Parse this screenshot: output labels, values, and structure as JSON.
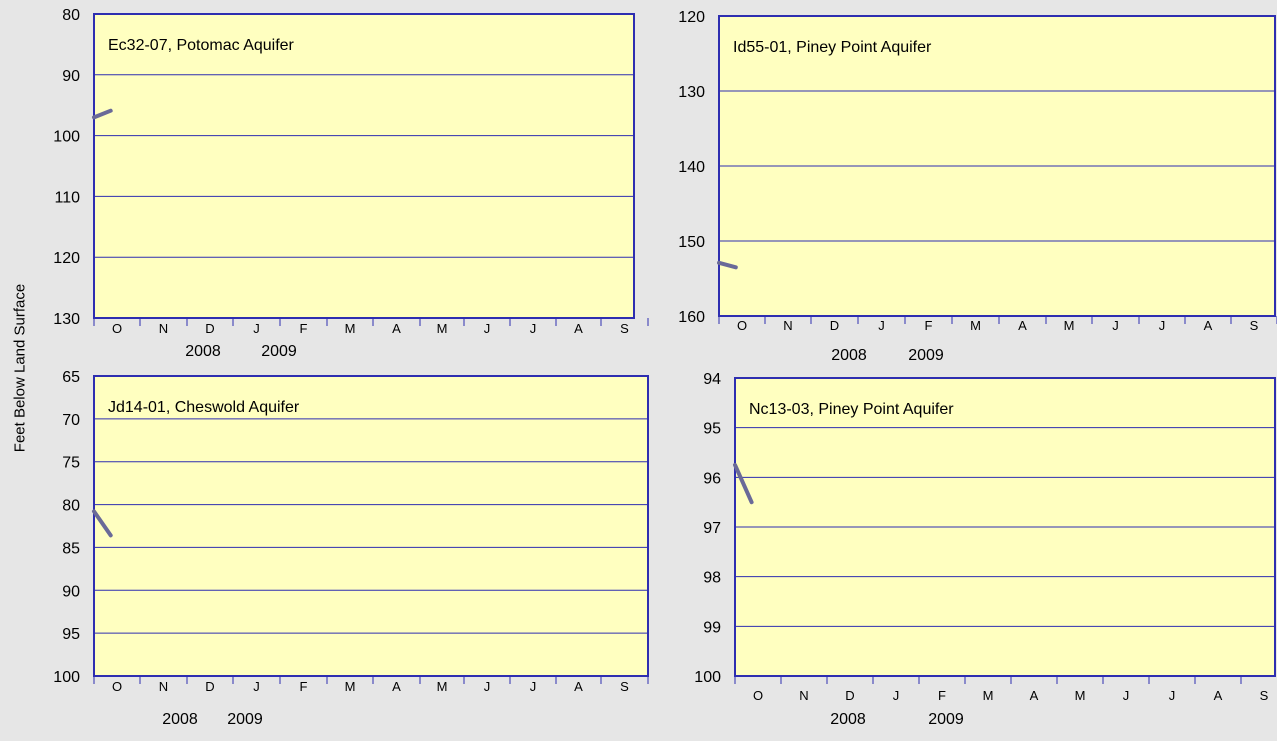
{
  "ylabel": "Feet Below Land Surface",
  "colors": {
    "plot_bg": "#ffffc0",
    "frame": "#2e2eb0",
    "grid": "#2e2eb0",
    "line": "#6a6a98"
  },
  "chart_data": [
    {
      "type": "line",
      "title": "Ec32-07, Potomac Aquifer",
      "ylim": [
        80,
        130
      ],
      "y_inverted": true,
      "yticks": [
        "80",
        "90",
        "100",
        "110",
        "120",
        "130"
      ],
      "months": [
        "O",
        "N",
        "D",
        "J",
        "F",
        "M",
        "A",
        "M",
        "J",
        "J",
        "A",
        "S"
      ],
      "years": [
        "2008",
        "2009"
      ],
      "series": [
        {
          "x": [
            "2008-10-01",
            "2008-10-12"
          ],
          "y": [
            97,
            95.9
          ]
        }
      ]
    },
    {
      "type": "line",
      "title": "Id55-01, Piney Point Aquifer",
      "ylim": [
        120,
        160
      ],
      "y_inverted": true,
      "yticks": [
        "120",
        "130",
        "140",
        "150",
        "160"
      ],
      "months": [
        "O",
        "N",
        "D",
        "J",
        "F",
        "M",
        "A",
        "M",
        "J",
        "J",
        "A",
        "S"
      ],
      "years": [
        "2008",
        "2009"
      ],
      "series": [
        {
          "x": [
            "2008-10-01",
            "2008-10-12"
          ],
          "y": [
            152.9,
            153.5
          ]
        }
      ]
    },
    {
      "type": "line",
      "title": "Jd14-01, Cheswold Aquifer",
      "ylim": [
        65,
        100
      ],
      "y_inverted": true,
      "yticks": [
        "65",
        "70",
        "75",
        "80",
        "85",
        "90",
        "95",
        "100"
      ],
      "months": [
        "O",
        "N",
        "D",
        "J",
        "F",
        "M",
        "A",
        "M",
        "J",
        "J",
        "A",
        "S"
      ],
      "years": [
        "2008",
        "2009"
      ],
      "series": [
        {
          "x": [
            "2008-10-01",
            "2008-10-12"
          ],
          "y": [
            80.8,
            83.6
          ]
        }
      ]
    },
    {
      "type": "line",
      "title": "Nc13-03, Piney Point Aquifer",
      "ylim": [
        94,
        100
      ],
      "y_inverted": true,
      "yticks": [
        "94",
        "95",
        "96",
        "97",
        "98",
        "99",
        "100"
      ],
      "months": [
        "O",
        "N",
        "D",
        "J",
        "F",
        "M",
        "A",
        "M",
        "J",
        "J",
        "A",
        "S"
      ],
      "years": [
        "2008",
        "2009"
      ],
      "series": [
        {
          "x": [
            "2008-10-01",
            "2008-10-12"
          ],
          "y": [
            95.75,
            96.5
          ]
        }
      ]
    }
  ]
}
